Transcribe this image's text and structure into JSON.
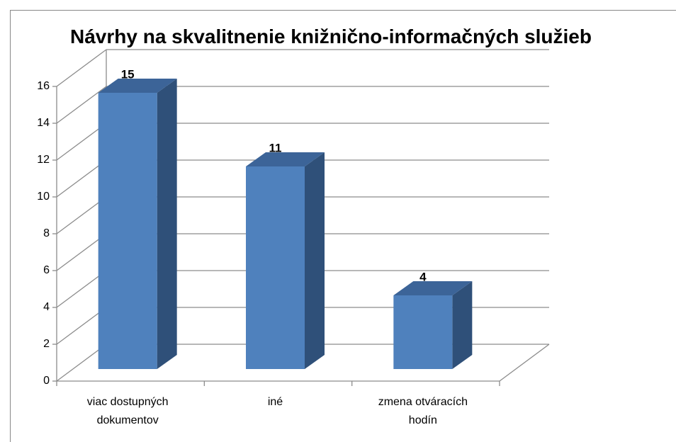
{
  "chart_data": {
    "type": "bar",
    "title": "Návrhy na skvalitnenie knižnično-informačných služieb",
    "categories": [
      "viac dostupných dokumentov",
      "iné",
      "zmena otváracích hodín"
    ],
    "values": [
      15,
      11,
      4
    ],
    "color": "#4f81bd",
    "ylim": [
      0,
      16
    ],
    "yticks": [
      0,
      2,
      4,
      6,
      8,
      10,
      12,
      14,
      16
    ],
    "grid": true
  }
}
